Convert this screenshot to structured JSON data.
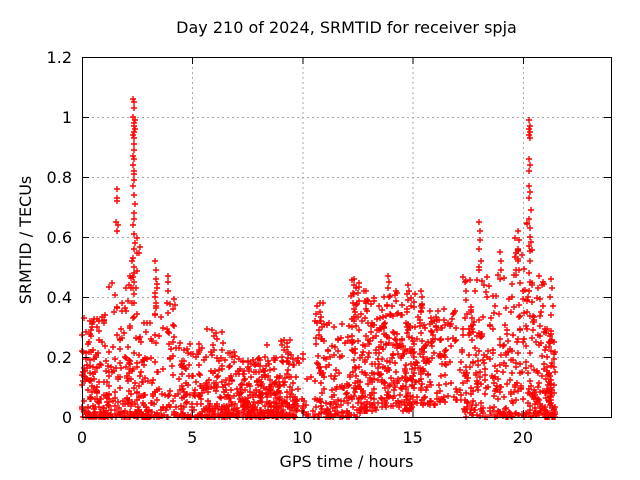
{
  "chart_data": {
    "type": "scatter",
    "title": "Day 210 of 2024, SRMTID for receiver spja",
    "xlabel": "GPS time / hours",
    "ylabel": "SRMTID / TECUs",
    "xlim": [
      0,
      24
    ],
    "ylim": [
      0,
      1.2
    ],
    "xticks": [
      {
        "v": 0,
        "label": "0"
      },
      {
        "v": 5,
        "label": "5"
      },
      {
        "v": 10,
        "label": "10"
      },
      {
        "v": 15,
        "label": "15"
      },
      {
        "v": 20,
        "label": "20"
      }
    ],
    "yticks": [
      {
        "v": 0,
        "label": "0"
      },
      {
        "v": 0.2,
        "label": "0.2"
      },
      {
        "v": 0.4,
        "label": "0.4"
      },
      {
        "v": 0.6,
        "label": "0.6"
      },
      {
        "v": 0.8,
        "label": "0.8"
      },
      {
        "v": 1,
        "label": "1"
      },
      {
        "v": 1.2,
        "label": "1.2"
      }
    ],
    "grid": true,
    "legend": "none",
    "marker": {
      "shape": "plus",
      "size": 7,
      "color": "#ff0000"
    },
    "grid_color": "#a8a8a8",
    "border_color": "#000000",
    "prng_seed": 1234,
    "cluster_fields": [
      "x_min",
      "x_max",
      "count",
      "y_min",
      "y_max",
      "y_power"
    ],
    "clusters": [
      [
        0.0,
        1.1,
        150,
        0,
        0.34,
        2.6
      ],
      [
        1.1,
        2.1,
        90,
        0,
        0.45,
        2.4
      ],
      [
        2.1,
        2.65,
        70,
        0,
        0.62,
        1.8
      ],
      [
        2.65,
        3.3,
        60,
        0,
        0.33,
        2.2
      ],
      [
        3.3,
        4.3,
        70,
        0,
        0.45,
        2.4
      ],
      [
        4.3,
        5.6,
        110,
        0,
        0.25,
        2.2
      ],
      [
        5.6,
        6.4,
        80,
        0,
        0.3,
        2.4
      ],
      [
        6.4,
        7.4,
        110,
        0,
        0.22,
        2.2
      ],
      [
        7.4,
        9.0,
        200,
        0,
        0.2,
        2.2
      ],
      [
        9.0,
        9.8,
        90,
        0,
        0.26,
        2.4
      ],
      [
        9.8,
        10.55,
        18,
        0,
        0.28,
        2.0
      ],
      [
        10.55,
        11.0,
        45,
        0,
        0.38,
        1.6
      ],
      [
        11.0,
        12.15,
        90,
        0,
        0.32,
        2.0
      ],
      [
        12.15,
        12.6,
        60,
        0,
        0.46,
        1.6
      ],
      [
        12.6,
        13.35,
        80,
        0.02,
        0.42,
        1.7
      ],
      [
        13.35,
        14.45,
        120,
        0.03,
        0.45,
        1.4
      ],
      [
        14.45,
        15.1,
        90,
        0.02,
        0.42,
        1.5
      ],
      [
        15.1,
        16.3,
        110,
        0.04,
        0.38,
        1.4
      ],
      [
        16.3,
        17.25,
        45,
        0.05,
        0.36,
        1.3
      ],
      [
        17.25,
        18.45,
        110,
        0,
        0.5,
        1.7
      ],
      [
        18.45,
        19.55,
        90,
        0,
        0.48,
        1.8
      ],
      [
        19.55,
        20.15,
        55,
        0,
        0.6,
        1.8
      ],
      [
        20.15,
        20.5,
        45,
        0,
        0.65,
        1.6
      ],
      [
        20.5,
        21.0,
        55,
        0,
        0.45,
        1.9
      ],
      [
        21.0,
        21.45,
        90,
        0,
        0.3,
        2.6
      ]
    ],
    "spike_points": [
      [
        0.35,
        0.32
      ],
      [
        0.45,
        0.3
      ],
      [
        0.4,
        0.27
      ],
      [
        0.3,
        0.25
      ],
      [
        1.58,
        0.76
      ],
      [
        1.61,
        0.73
      ],
      [
        1.59,
        0.72
      ],
      [
        1.56,
        0.65
      ],
      [
        1.62,
        0.64
      ],
      [
        1.6,
        0.62
      ],
      [
        2.32,
        1.06
      ],
      [
        2.38,
        1.05
      ],
      [
        2.35,
        1.03
      ],
      [
        2.33,
        1.0
      ],
      [
        2.39,
        0.99
      ],
      [
        2.36,
        0.98
      ],
      [
        2.34,
        0.97
      ],
      [
        2.4,
        0.96
      ],
      [
        2.37,
        0.95
      ],
      [
        2.32,
        0.94
      ],
      [
        2.38,
        0.93
      ],
      [
        2.35,
        0.91
      ],
      [
        2.36,
        0.89
      ],
      [
        2.33,
        0.87
      ],
      [
        2.37,
        0.86
      ],
      [
        2.3,
        0.84
      ],
      [
        2.34,
        0.82
      ],
      [
        2.38,
        0.81
      ],
      [
        2.35,
        0.79
      ],
      [
        2.31,
        0.77
      ],
      [
        2.36,
        0.74
      ],
      [
        2.4,
        0.71
      ],
      [
        2.34,
        0.68
      ],
      [
        2.37,
        0.66
      ],
      [
        2.33,
        0.64
      ],
      [
        2.36,
        0.61
      ],
      [
        2.39,
        0.58
      ],
      [
        2.35,
        0.56
      ],
      [
        2.31,
        0.53
      ],
      [
        2.37,
        0.5
      ],
      [
        2.34,
        0.48
      ],
      [
        2.38,
        0.45
      ],
      [
        2.32,
        0.43
      ],
      [
        2.36,
        0.41
      ],
      [
        2.35,
        0.38
      ],
      [
        2.2,
        0.47
      ],
      [
        2.15,
        0.44
      ],
      [
        2.25,
        0.52
      ],
      [
        3.32,
        0.52
      ],
      [
        3.36,
        0.49
      ],
      [
        3.34,
        0.46
      ],
      [
        3.38,
        0.43
      ],
      [
        3.33,
        0.4
      ],
      [
        3.36,
        0.37
      ],
      [
        3.3,
        0.34
      ],
      [
        3.88,
        0.47
      ],
      [
        3.92,
        0.45
      ],
      [
        3.9,
        0.42
      ],
      [
        3.86,
        0.38
      ],
      [
        5.92,
        0.29
      ],
      [
        5.97,
        0.27
      ],
      [
        5.95,
        0.24
      ],
      [
        8.4,
        0.24
      ],
      [
        10.78,
        0.38
      ],
      [
        10.82,
        0.35
      ],
      [
        10.8,
        0.32
      ],
      [
        10.76,
        0.29
      ],
      [
        10.84,
        0.26
      ],
      [
        12.32,
        0.46
      ],
      [
        12.36,
        0.44
      ],
      [
        12.34,
        0.41
      ],
      [
        12.3,
        0.38
      ],
      [
        12.38,
        0.35
      ],
      [
        12.33,
        0.32
      ],
      [
        12.88,
        0.42
      ],
      [
        12.92,
        0.39
      ],
      [
        12.9,
        0.36
      ],
      [
        13.88,
        0.47
      ],
      [
        13.92,
        0.45
      ],
      [
        13.9,
        0.43
      ],
      [
        13.94,
        0.4
      ],
      [
        13.86,
        0.37
      ],
      [
        14.78,
        0.44
      ],
      [
        14.82,
        0.42
      ],
      [
        14.8,
        0.39
      ],
      [
        15.38,
        0.42
      ],
      [
        15.42,
        0.4
      ],
      [
        15.4,
        0.37
      ],
      [
        17.38,
        0.45
      ],
      [
        17.42,
        0.42
      ],
      [
        17.4,
        0.39
      ],
      [
        18.02,
        0.65
      ],
      [
        18.06,
        0.62
      ],
      [
        18.04,
        0.59
      ],
      [
        18.0,
        0.56
      ],
      [
        18.08,
        0.52
      ],
      [
        18.03,
        0.49
      ],
      [
        18.98,
        0.55
      ],
      [
        19.02,
        0.52
      ],
      [
        19.0,
        0.49
      ],
      [
        18.96,
        0.46
      ],
      [
        19.78,
        0.62
      ],
      [
        19.82,
        0.59
      ],
      [
        19.8,
        0.56
      ],
      [
        19.76,
        0.52
      ],
      [
        19.84,
        0.49
      ],
      [
        20.28,
        0.99
      ],
      [
        20.32,
        0.97
      ],
      [
        20.3,
        0.96
      ],
      [
        20.34,
        0.95
      ],
      [
        20.27,
        0.94
      ],
      [
        20.31,
        0.93
      ],
      [
        20.29,
        0.86
      ],
      [
        20.33,
        0.84
      ],
      [
        20.3,
        0.82
      ],
      [
        20.28,
        0.77
      ],
      [
        20.32,
        0.75
      ],
      [
        20.3,
        0.73
      ],
      [
        20.35,
        0.69
      ],
      [
        20.29,
        0.66
      ],
      [
        20.33,
        0.63
      ],
      [
        20.31,
        0.6
      ],
      [
        20.27,
        0.57
      ],
      [
        20.34,
        0.52
      ],
      [
        20.3,
        0.48
      ],
      [
        20.32,
        0.45
      ],
      [
        20.28,
        0.42
      ],
      [
        20.75,
        0.47
      ],
      [
        20.85,
        0.44
      ],
      [
        21.28,
        0.46
      ],
      [
        21.32,
        0.43
      ],
      [
        21.25,
        0.4
      ],
      [
        21.35,
        0.37
      ],
      [
        21.3,
        0.34
      ]
    ]
  }
}
